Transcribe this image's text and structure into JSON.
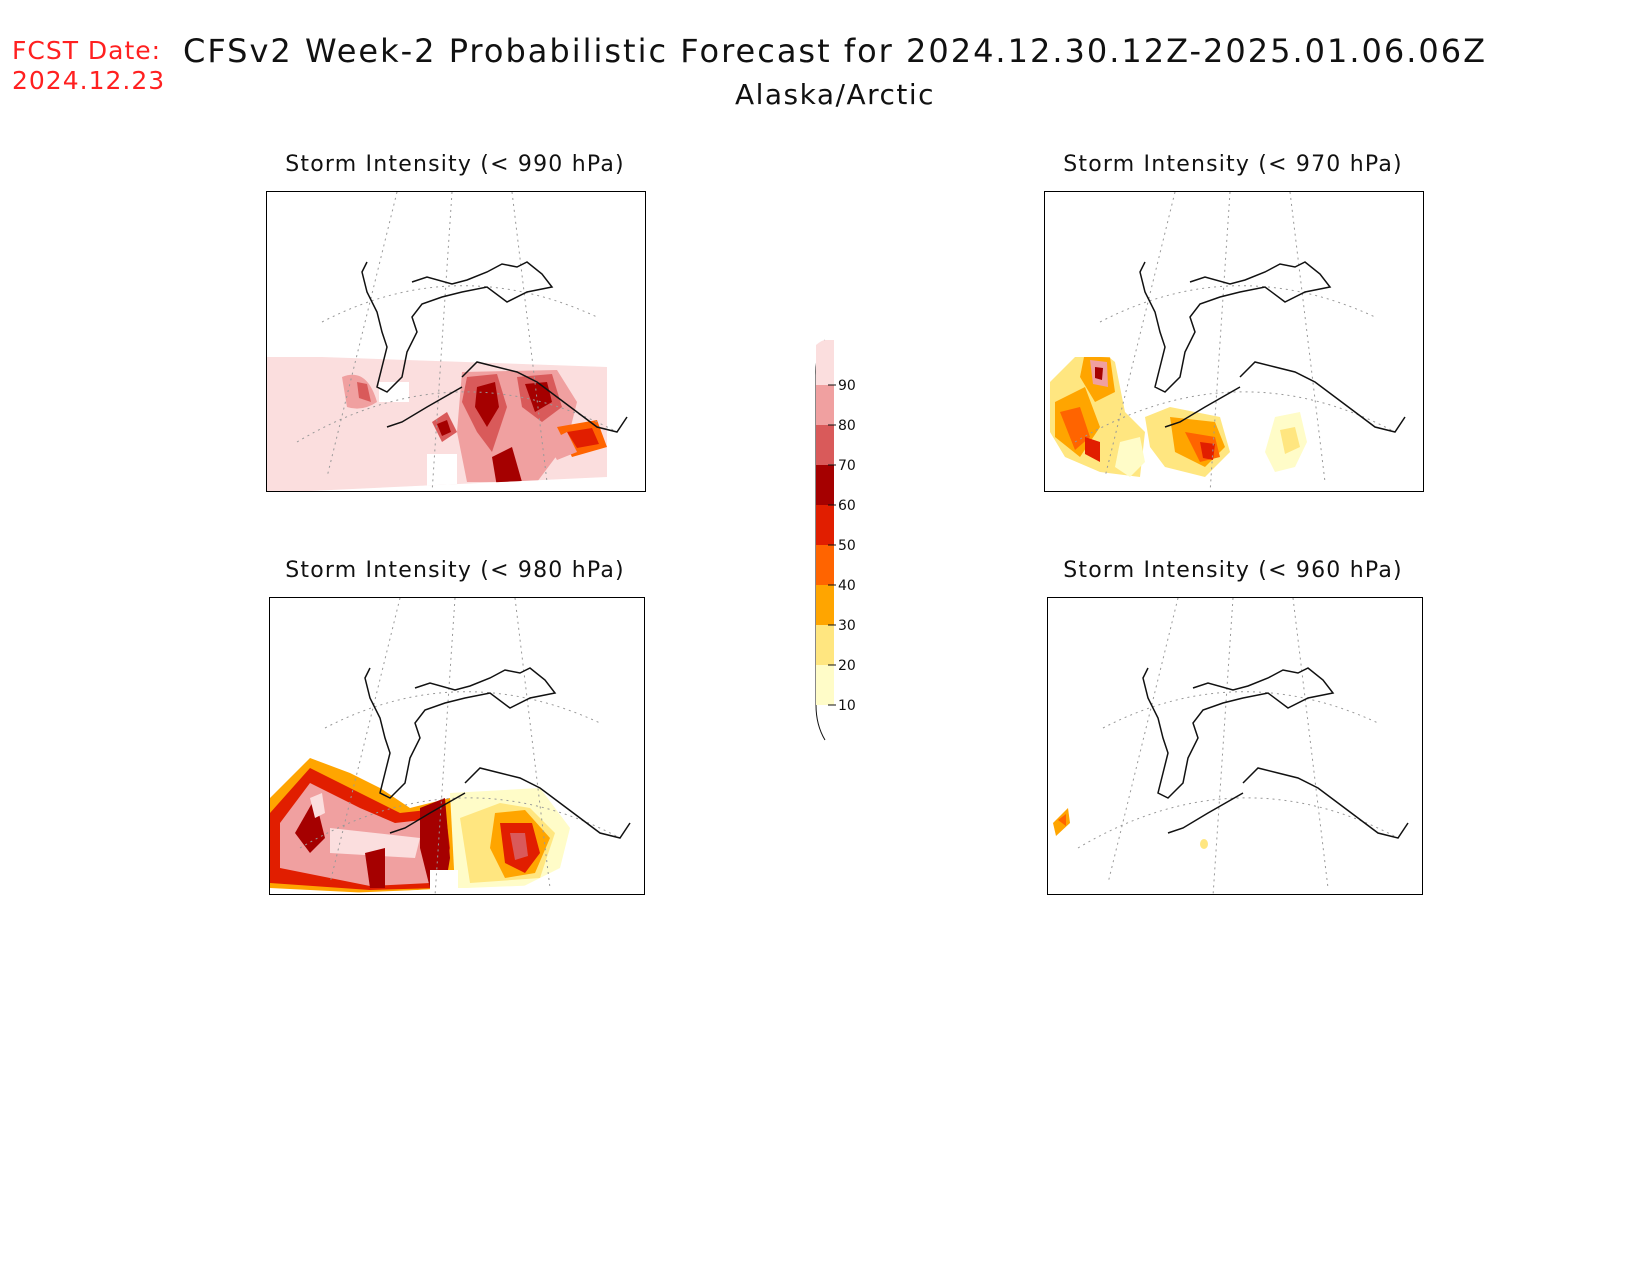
{
  "header": {
    "fcst_label": "FCST Date:",
    "fcst_date": "2024.12.23",
    "title": "CFSv2 Week-2 Probabilistic Forecast for 2024.12.30.12Z-2025.01.06.06Z",
    "region": "Alaska/Arctic",
    "label_color": "#ff2020"
  },
  "panels": [
    {
      "id": "p990",
      "title": "Storm Intensity (< 990 hPa)"
    },
    {
      "id": "p970",
      "title": "Storm Intensity (< 970 hPa)"
    },
    {
      "id": "p980",
      "title": "Storm Intensity (< 980 hPa)"
    },
    {
      "id": "p960",
      "title": "Storm Intensity (< 960 hPa)"
    }
  ],
  "legend": {
    "levels": [
      "10",
      "20",
      "30",
      "40",
      "50",
      "60",
      "70",
      "80",
      "90"
    ],
    "colors": [
      "#fffcc8",
      "#ffe680",
      "#ffa500",
      "#ff6400",
      "#e11e00",
      "#a50000",
      "#d95a5a",
      "#f0a0a0",
      "#fbdede"
    ]
  }
}
